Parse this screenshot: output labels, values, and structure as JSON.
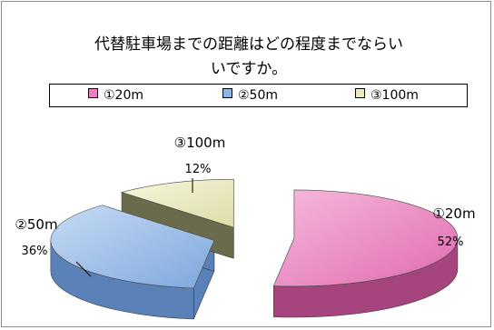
{
  "chart_data": {
    "type": "pie",
    "title": "代替駐車場までの距離はどの程度までならいいですか。",
    "title_lines": [
      "代替駐車場までの距離はどの程度までならい",
      "いですか。"
    ],
    "categories": [
      "①20m",
      "②50m",
      "③100m"
    ],
    "values": [
      52,
      36,
      12
    ],
    "value_labels": [
      "52%",
      "36%",
      "12%"
    ],
    "colors": [
      "#e97fbf",
      "#8fb5e4",
      "#ecebc0"
    ],
    "legend_position": "top",
    "style": "3d-exploded"
  }
}
